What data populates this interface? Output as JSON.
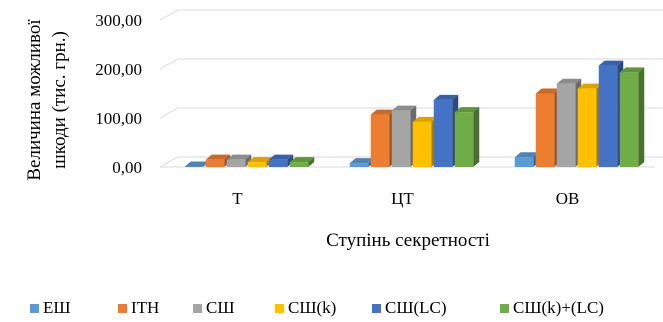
{
  "chart_data": {
    "type": "bar",
    "style": "3d-clustered-column",
    "categories": [
      "Т",
      "ЦТ",
      "ОВ"
    ],
    "series": [
      {
        "name": "ЕШ",
        "color": "#5B9BD5",
        "values": [
          1,
          8,
          20
        ]
      },
      {
        "name": "ІТН",
        "color": "#ED7D31",
        "values": [
          15,
          107,
          150
        ]
      },
      {
        "name": "СШ",
        "color": "#A5A5A5",
        "values": [
          15,
          115,
          170
        ]
      },
      {
        "name": "СШ(k)",
        "color": "#FFC000",
        "values": [
          10,
          92,
          160
        ]
      },
      {
        "name": "СШ(LC)",
        "color": "#4472C4",
        "values": [
          15,
          137,
          207
        ]
      },
      {
        "name": "СШ(k)+(LC)",
        "color": "#70AD47",
        "values": [
          10,
          112,
          193
        ]
      }
    ],
    "yticks": [
      "0,00",
      "100,00",
      "200,00",
      "300,00"
    ],
    "ylim": [
      0,
      300
    ],
    "xlabel": "Ступінь секретності",
    "ylabel_lines": [
      "Величина можливої",
      "шкоди (тис. грн.)"
    ],
    "grid": true,
    "legend_position": "bottom"
  }
}
